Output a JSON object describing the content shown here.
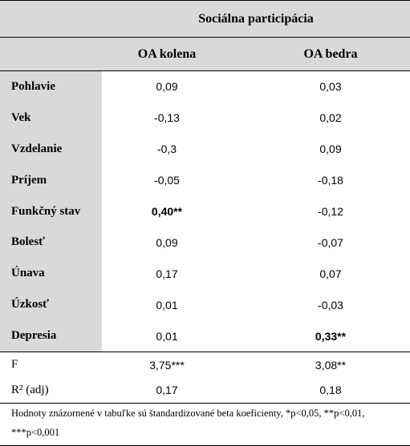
{
  "header": {
    "title": "Sociálna participácia"
  },
  "table": {
    "columns": [
      "OA kolena",
      "OA bedra"
    ],
    "rows": [
      [
        "Pohlavie",
        "0,09",
        "0,03"
      ],
      [
        "Vek",
        "-0,13",
        "0,02"
      ],
      [
        "Vzdelanie",
        "-0,3",
        "0,09"
      ],
      [
        "Príjem",
        "-0,05",
        "-0,18"
      ],
      [
        "Funkčný stav",
        "0,40**",
        "-0,12"
      ],
      [
        "Bolesť",
        "0,09",
        "-0,07"
      ],
      [
        "Únava",
        "0,17",
        "0,07"
      ],
      [
        "Úzkosť",
        "0,01",
        "-0,03"
      ],
      [
        "Depresia",
        "0,01",
        "0,33**"
      ]
    ],
    "stats": [
      [
        "F",
        "3,75***",
        "3,08**"
      ],
      [
        "R² (adj)",
        "0,17",
        "0,18"
      ]
    ],
    "footnote": "Hodnoty znázornené v tabuľke sú štandardizované beta koeficienty, *p<0,05, **p<0,01, ***p<0,001"
  }
}
